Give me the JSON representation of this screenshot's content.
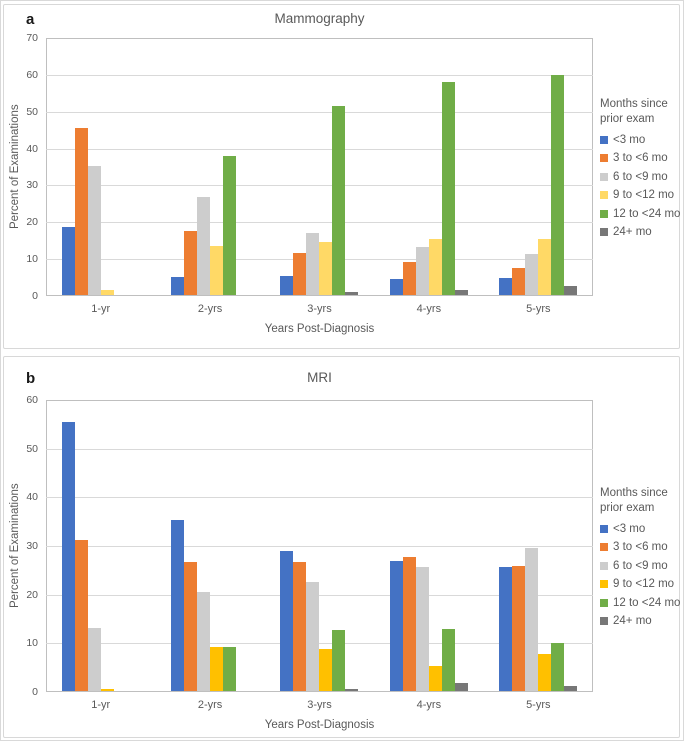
{
  "figure": {
    "panel_count": 2
  },
  "chart_data": [
    {
      "type": "bar",
      "panel_label": "a",
      "title": "Mammography",
      "xlabel": "Years Post-Diagnosis",
      "ylabel": "Percent of Examinations",
      "ylim": [
        0,
        70
      ],
      "ytick_step": 10,
      "grid": true,
      "legend_position": "right",
      "legend_title": "Months since prior exam",
      "categories": [
        "1-yr",
        "2-yrs",
        "3-yrs",
        "4-yrs",
        "5-yrs"
      ],
      "series": [
        {
          "name": "<3 mo",
          "color": "#4472C4",
          "values": [
            18.5,
            4.9,
            5.1,
            4.3,
            4.7
          ]
        },
        {
          "name": "3 to <6 mo",
          "color": "#ED7D31",
          "values": [
            45.2,
            17.5,
            11.4,
            9.0,
            7.4
          ]
        },
        {
          "name": "6 to <9 mo",
          "color": "#CDCDCD",
          "values": [
            35.0,
            26.5,
            16.9,
            13.1,
            11.0
          ]
        },
        {
          "name": "9 to <12 mo",
          "color": "#FFD966",
          "values": [
            1.4,
            13.4,
            14.4,
            15.1,
            15.3
          ]
        },
        {
          "name": "12 to <24 mo",
          "color": "#70AD47",
          "values": [
            0,
            37.8,
            51.4,
            57.7,
            59.6
          ]
        },
        {
          "name": "24+ mo",
          "color": "#777777",
          "values": [
            0,
            0,
            0.8,
            1.4,
            2.5
          ]
        }
      ]
    },
    {
      "type": "bar",
      "panel_label": "b",
      "title": "MRI",
      "xlabel": "Years Post-Diagnosis",
      "ylabel": "Percent of Examinations",
      "ylim": [
        0,
        60
      ],
      "ytick_step": 10,
      "grid": true,
      "legend_position": "right",
      "legend_title": "Months since prior exam",
      "categories": [
        "1-yr",
        "2-yrs",
        "3-yrs",
        "4-yrs",
        "5-yrs"
      ],
      "series": [
        {
          "name": "<3 mo",
          "color": "#4472C4",
          "values": [
            55.3,
            35.1,
            28.8,
            26.7,
            25.5
          ]
        },
        {
          "name": "3 to <6 mo",
          "color": "#ED7D31",
          "values": [
            31.1,
            26.5,
            26.6,
            27.6,
            25.6
          ]
        },
        {
          "name": "6 to <9 mo",
          "color": "#CDCDCD",
          "values": [
            13.0,
            20.4,
            22.4,
            25.4,
            29.4
          ]
        },
        {
          "name": "9 to <12 mo",
          "color": "#FFC000",
          "values": [
            0.4,
            9.0,
            8.6,
            5.2,
            7.6
          ]
        },
        {
          "name": "12 to <24 mo",
          "color": "#70AD47",
          "values": [
            0,
            9.0,
            12.5,
            12.8,
            9.9
          ]
        },
        {
          "name": "24+ mo",
          "color": "#777777",
          "values": [
            0,
            0,
            0.4,
            1.6,
            1.1
          ]
        }
      ]
    }
  ]
}
